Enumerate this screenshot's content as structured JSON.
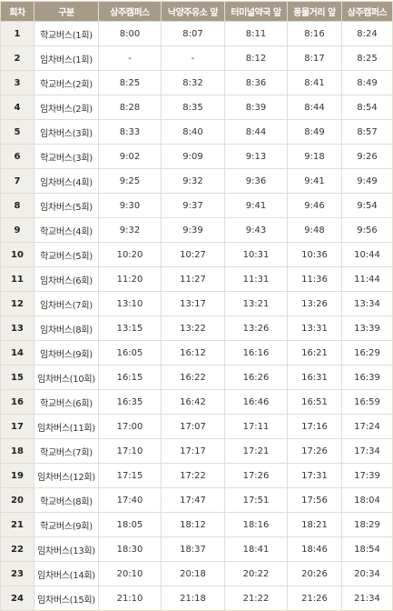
{
  "table": {
    "headers": [
      "회차",
      "구분",
      "상주캠퍼스",
      "낙양주유소 앞",
      "터미널약국 앞",
      "풍물거리 앞",
      "상주캠퍼스"
    ],
    "rows": [
      [
        "1",
        "학교버스(1회)",
        "8:00",
        "8:07",
        "8:11",
        "8:16",
        "8:24"
      ],
      [
        "2",
        "임차버스(1회)",
        "-",
        "-",
        "8:12",
        "8:17",
        "8:25"
      ],
      [
        "3",
        "학교버스(2회)",
        "8:25",
        "8:32",
        "8:36",
        "8:41",
        "8:49"
      ],
      [
        "4",
        "임차버스(2회)",
        "8:28",
        "8:35",
        "8:39",
        "8:44",
        "8:54"
      ],
      [
        "5",
        "임차버스(3회)",
        "8:33",
        "8:40",
        "8:44",
        "8:49",
        "8:57"
      ],
      [
        "6",
        "학교버스(3회)",
        "9:02",
        "9:09",
        "9:13",
        "9:18",
        "9:26"
      ],
      [
        "7",
        "임차버스(4회)",
        "9:25",
        "9:32",
        "9:36",
        "9:41",
        "9:49"
      ],
      [
        "8",
        "임차버스(5회)",
        "9:30",
        "9:37",
        "9:41",
        "9:46",
        "9:54"
      ],
      [
        "9",
        "학교버스(4회)",
        "9:32",
        "9:39",
        "9:43",
        "9:48",
        "9:56"
      ],
      [
        "10",
        "학교버스(5회)",
        "10:20",
        "10:27",
        "10:31",
        "10:36",
        "10:44"
      ],
      [
        "11",
        "임차버스(6회)",
        "11:20",
        "11:27",
        "11:31",
        "11:36",
        "11:44"
      ],
      [
        "12",
        "임차버스(7회)",
        "13:10",
        "13:17",
        "13:21",
        "13:26",
        "13:34"
      ],
      [
        "13",
        "임차버스(8회)",
        "13:15",
        "13:22",
        "13:26",
        "13:31",
        "13:39"
      ],
      [
        "14",
        "임차버스(9회)",
        "16:05",
        "16:12",
        "16:16",
        "16:21",
        "16:29"
      ],
      [
        "15",
        "임차버스(10회)",
        "16:15",
        "16:22",
        "16:26",
        "16:31",
        "16:39"
      ],
      [
        "16",
        "학교버스(6회)",
        "16:35",
        "16:42",
        "16:46",
        "16:51",
        "16:59"
      ],
      [
        "17",
        "임차버스(11회)",
        "17:00",
        "17:07",
        "17:11",
        "17:16",
        "17:24"
      ],
      [
        "18",
        "학교버스(7회)",
        "17:10",
        "17:17",
        "17:21",
        "17:26",
        "17:34"
      ],
      [
        "19",
        "임차버스(12회)",
        "17:15",
        "17:22",
        "17:26",
        "17:31",
        "17:39"
      ],
      [
        "20",
        "학교버스(8회)",
        "17:40",
        "17:47",
        "17:51",
        "17:56",
        "18:04"
      ],
      [
        "21",
        "학교버스(9회)",
        "18:05",
        "18:12",
        "18:16",
        "18:21",
        "18:29"
      ],
      [
        "22",
        "임차버스(13회)",
        "18:30",
        "18:37",
        "18:41",
        "18:46",
        "18:54"
      ],
      [
        "23",
        "임차버스(14회)",
        "20:10",
        "20:18",
        "20:22",
        "20:26",
        "20:34"
      ],
      [
        "24",
        "임차버스(15회)",
        "21:10",
        "21:18",
        "21:22",
        "21:26",
        "21:34"
      ]
    ]
  }
}
